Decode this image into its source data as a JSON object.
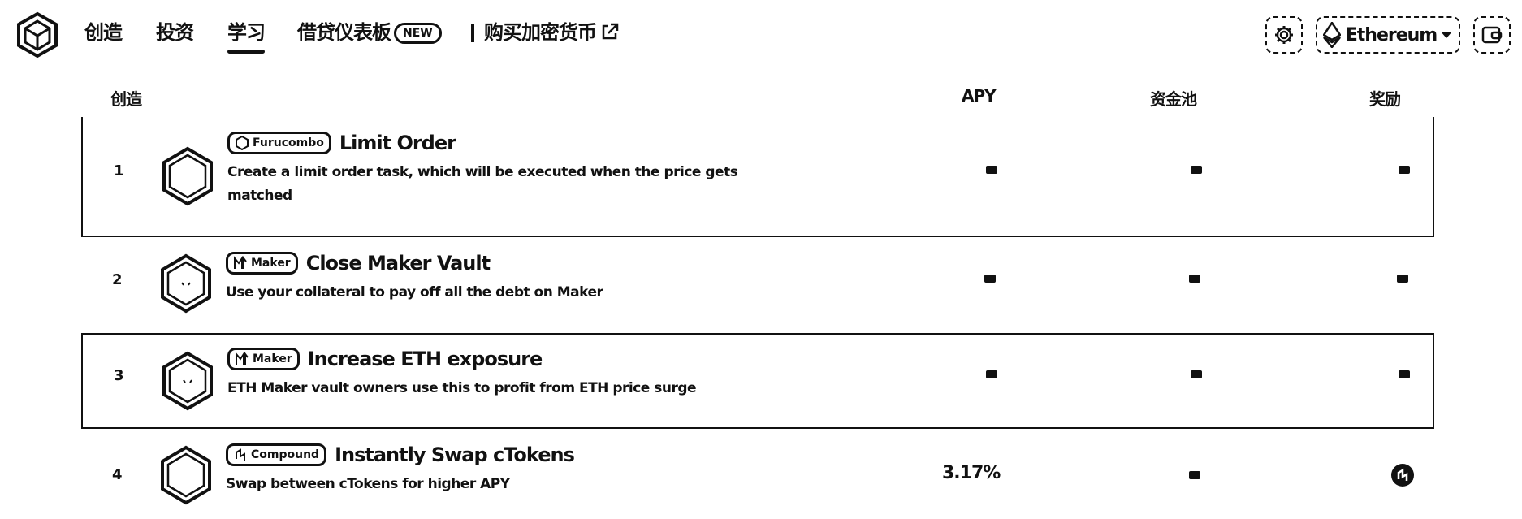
{
  "nav": {
    "items": [
      "创造",
      "投资",
      "学习"
    ],
    "active": "学习",
    "dashboard_label": "借贷仪表板",
    "new_badge": "NEW",
    "buy_crypto_label": "购买加密货币"
  },
  "header": {
    "network": "Ethereum"
  },
  "table": {
    "columns": [
      "创造",
      "APY",
      "资金池",
      "奖励"
    ],
    "rows": [
      {
        "rank": "1",
        "protocol": "Furucombo",
        "title": "Limit Order",
        "description": "Create a limit order task, which will be executed when the price gets matched",
        "apy": "-",
        "pool": "-",
        "reward": "-"
      },
      {
        "rank": "2",
        "protocol": "Maker",
        "title": "Close Maker Vault",
        "description": "Use your collateral to pay off all the debt on Maker",
        "apy": "-",
        "pool": "-",
        "reward": "-"
      },
      {
        "rank": "3",
        "protocol": "Maker",
        "title": "Increase ETH exposure",
        "description": "ETH Maker vault owners use this to profit from ETH price surge",
        "apy": "-",
        "pool": "-",
        "reward": "-"
      },
      {
        "rank": "4",
        "protocol": "Compound",
        "title": "Instantly Swap cTokens",
        "description": "Swap between cTokens for higher APY",
        "apy": "3.17%",
        "pool": "-",
        "reward": "compound-token-icon"
      }
    ]
  },
  "colors": {
    "ink": "#111111",
    "background": "#ffffff"
  }
}
